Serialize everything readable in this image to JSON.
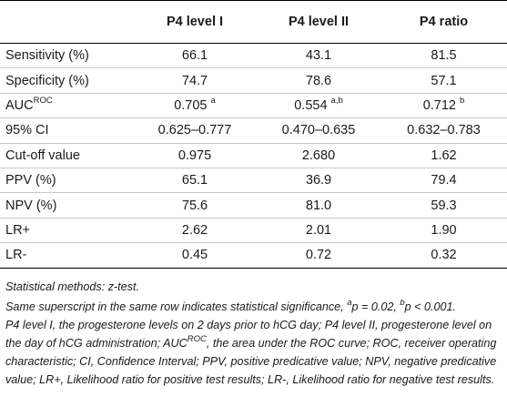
{
  "table": {
    "headers": [
      "",
      "P4 level I",
      "P4 level II",
      "P4 ratio"
    ],
    "rows": [
      {
        "label": "Sensitivity (%)",
        "values": [
          "66.1",
          "43.1",
          "81.5"
        ]
      },
      {
        "label": "Specificity (%)",
        "values": [
          "74.7",
          "78.6",
          "57.1"
        ]
      },
      {
        "label_base": "AUC",
        "label_sup": "ROC",
        "values": [
          "0.705",
          "0.554",
          "0.712"
        ],
        "sups": [
          "a",
          "a,b",
          "b"
        ]
      },
      {
        "label": "95% CI",
        "values": [
          "0.625–0.777",
          "0.470–0.635",
          "0.632–0.783"
        ]
      },
      {
        "label": "Cut-off value",
        "values": [
          "0.975",
          "2.680",
          "1.62"
        ]
      },
      {
        "label": "PPV (%)",
        "values": [
          "65.1",
          "36.9",
          "79.4"
        ]
      },
      {
        "label": "NPV (%)",
        "values": [
          "75.6",
          "81.0",
          "59.3"
        ]
      },
      {
        "label": "LR+",
        "values": [
          "2.62",
          "2.01",
          "1.90"
        ]
      },
      {
        "label": "LR-",
        "values": [
          "0.45",
          "0.72",
          "0.32"
        ]
      }
    ]
  },
  "footnotes": {
    "methods": "Statistical methods: z-test.",
    "superscript_note_start": "Same superscript in the same row indicates statistical significance, ",
    "sup_a": "a",
    "p_a": "p = 0.02, ",
    "sup_b": "b",
    "p_b": "p < 0.001.",
    "abbr_1": "P4 level I, the progesterone levels on 2 days prior to hCG day; P4 level II, progesterone level on the day of hCG administration; AUC",
    "abbr_sup": "ROC",
    "abbr_2": ", the area under the ROC curve; ROC, receiver operating characteristic; CI, Confidence Interval; PPV, positive predicative value; NPV, negative predicative value; LR+, Likelihood ratio for positive test results; LR-, Likelihood ratio for negative test results."
  }
}
